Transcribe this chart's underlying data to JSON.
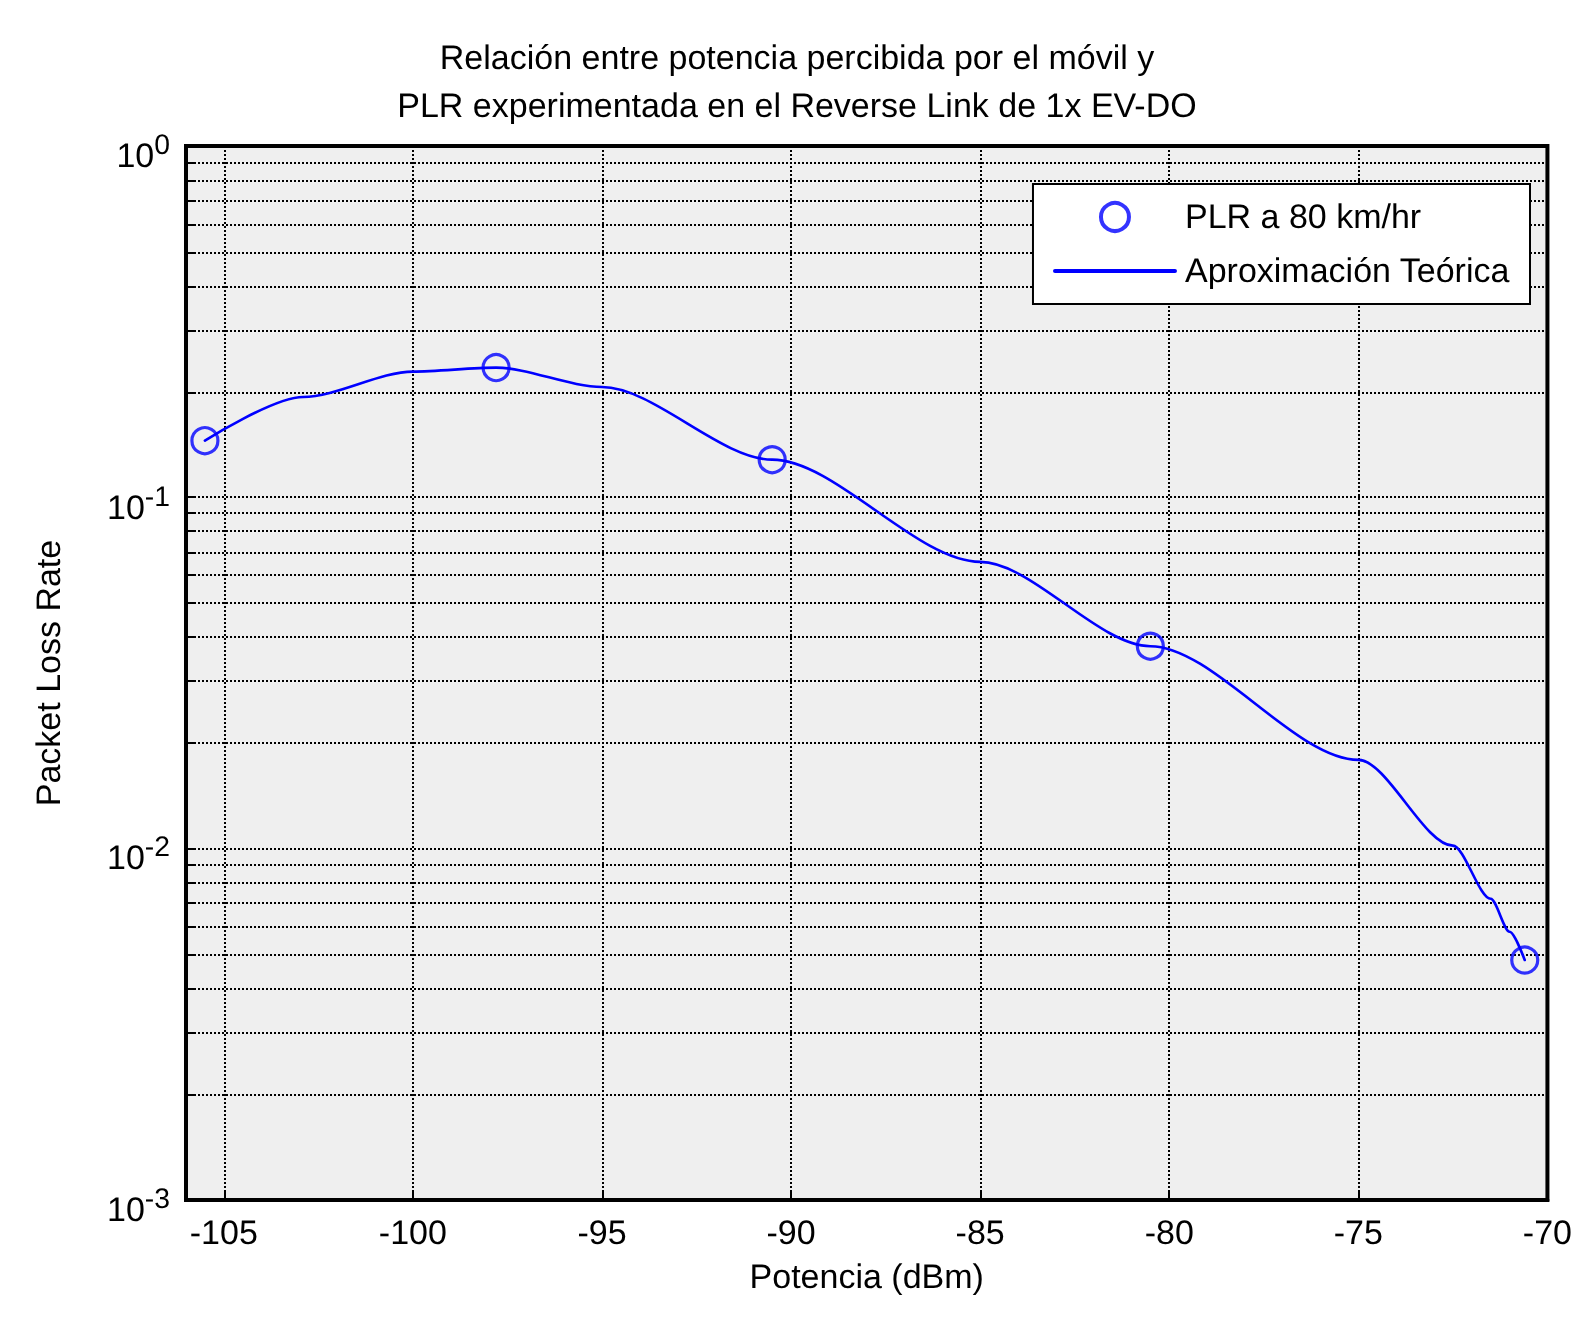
{
  "chart_data": {
    "type": "scatter",
    "title": "Relación entre potencia percibida por el móvil y\nPLR experimentada en el Reverse Link de 1x EV-DO",
    "xlabel": "Potencia (dBm)",
    "ylabel": "Packet Loss Rate",
    "xlim": [
      -106,
      -70
    ],
    "xticks": [
      -105,
      -100,
      -95,
      -90,
      -85,
      -80,
      -75,
      -70
    ],
    "ylim": [
      0.001,
      1
    ],
    "yticks": [
      {
        "value": 0.001,
        "label": "10$^{-3}$"
      },
      {
        "value": 0.002,
        "label": null
      },
      {
        "value": 0.003,
        "label": null
      },
      {
        "value": 0.004,
        "label": null
      },
      {
        "value": 0.005,
        "label": null
      },
      {
        "value": 0.006,
        "label": null
      },
      {
        "value": 0.007,
        "label": null
      },
      {
        "value": 0.008,
        "label": null
      },
      {
        "value": 0.009,
        "label": null
      },
      {
        "value": 0.01,
        "label": "10$^{-2}$"
      },
      {
        "value": 0.02,
        "label": null
      },
      {
        "value": 0.03,
        "label": null
      },
      {
        "value": 0.04,
        "label": null
      },
      {
        "value": 0.05,
        "label": null
      },
      {
        "value": 0.06,
        "label": null
      },
      {
        "value": 0.07,
        "label": null
      },
      {
        "value": 0.08,
        "label": null
      },
      {
        "value": 0.09,
        "label": null
      },
      {
        "value": 0.1,
        "label": "10$^{-1}$"
      },
      {
        "value": 0.2,
        "label": null
      },
      {
        "value": 0.3,
        "label": null
      },
      {
        "value": 0.4,
        "label": null
      },
      {
        "value": 0.5,
        "label": null
      },
      {
        "value": 0.6,
        "label": null
      },
      {
        "value": 0.7,
        "label": null
      },
      {
        "value": 0.8,
        "label": null
      },
      {
        "value": 0.9,
        "label": null
      },
      {
        "value": 1,
        "label": "10$^{0}$"
      }
    ],
    "log": "y",
    "grid": true,
    "legend": "top right",
    "series": [
      {
        "name": "PLR a 80 km/hr",
        "marker": "circle",
        "color": "#0000ff",
        "x": [
          -105.5,
          -97.8,
          -90.5,
          -80.5,
          -70.6
        ],
        "values": [
          0.145,
          0.234,
          0.128,
          0.0377,
          0.00482
        ]
      },
      {
        "name": "Aproximación Teórica",
        "type": "line",
        "marker": "none",
        "line_style": "solid",
        "color": "#0000ff",
        "x": [
          -105.5,
          -102.9,
          -100,
          -97.8,
          -95,
          -90.5,
          -85,
          -80.5,
          -75,
          -72.5,
          -71.5,
          -71,
          -70.6
        ],
        "values": [
          0.145,
          0.193,
          0.228,
          0.234,
          0.206,
          0.128,
          0.0655,
          0.0377,
          0.0179,
          0.0102,
          0.0072,
          0.0058,
          0.00482
        ]
      }
    ]
  }
}
